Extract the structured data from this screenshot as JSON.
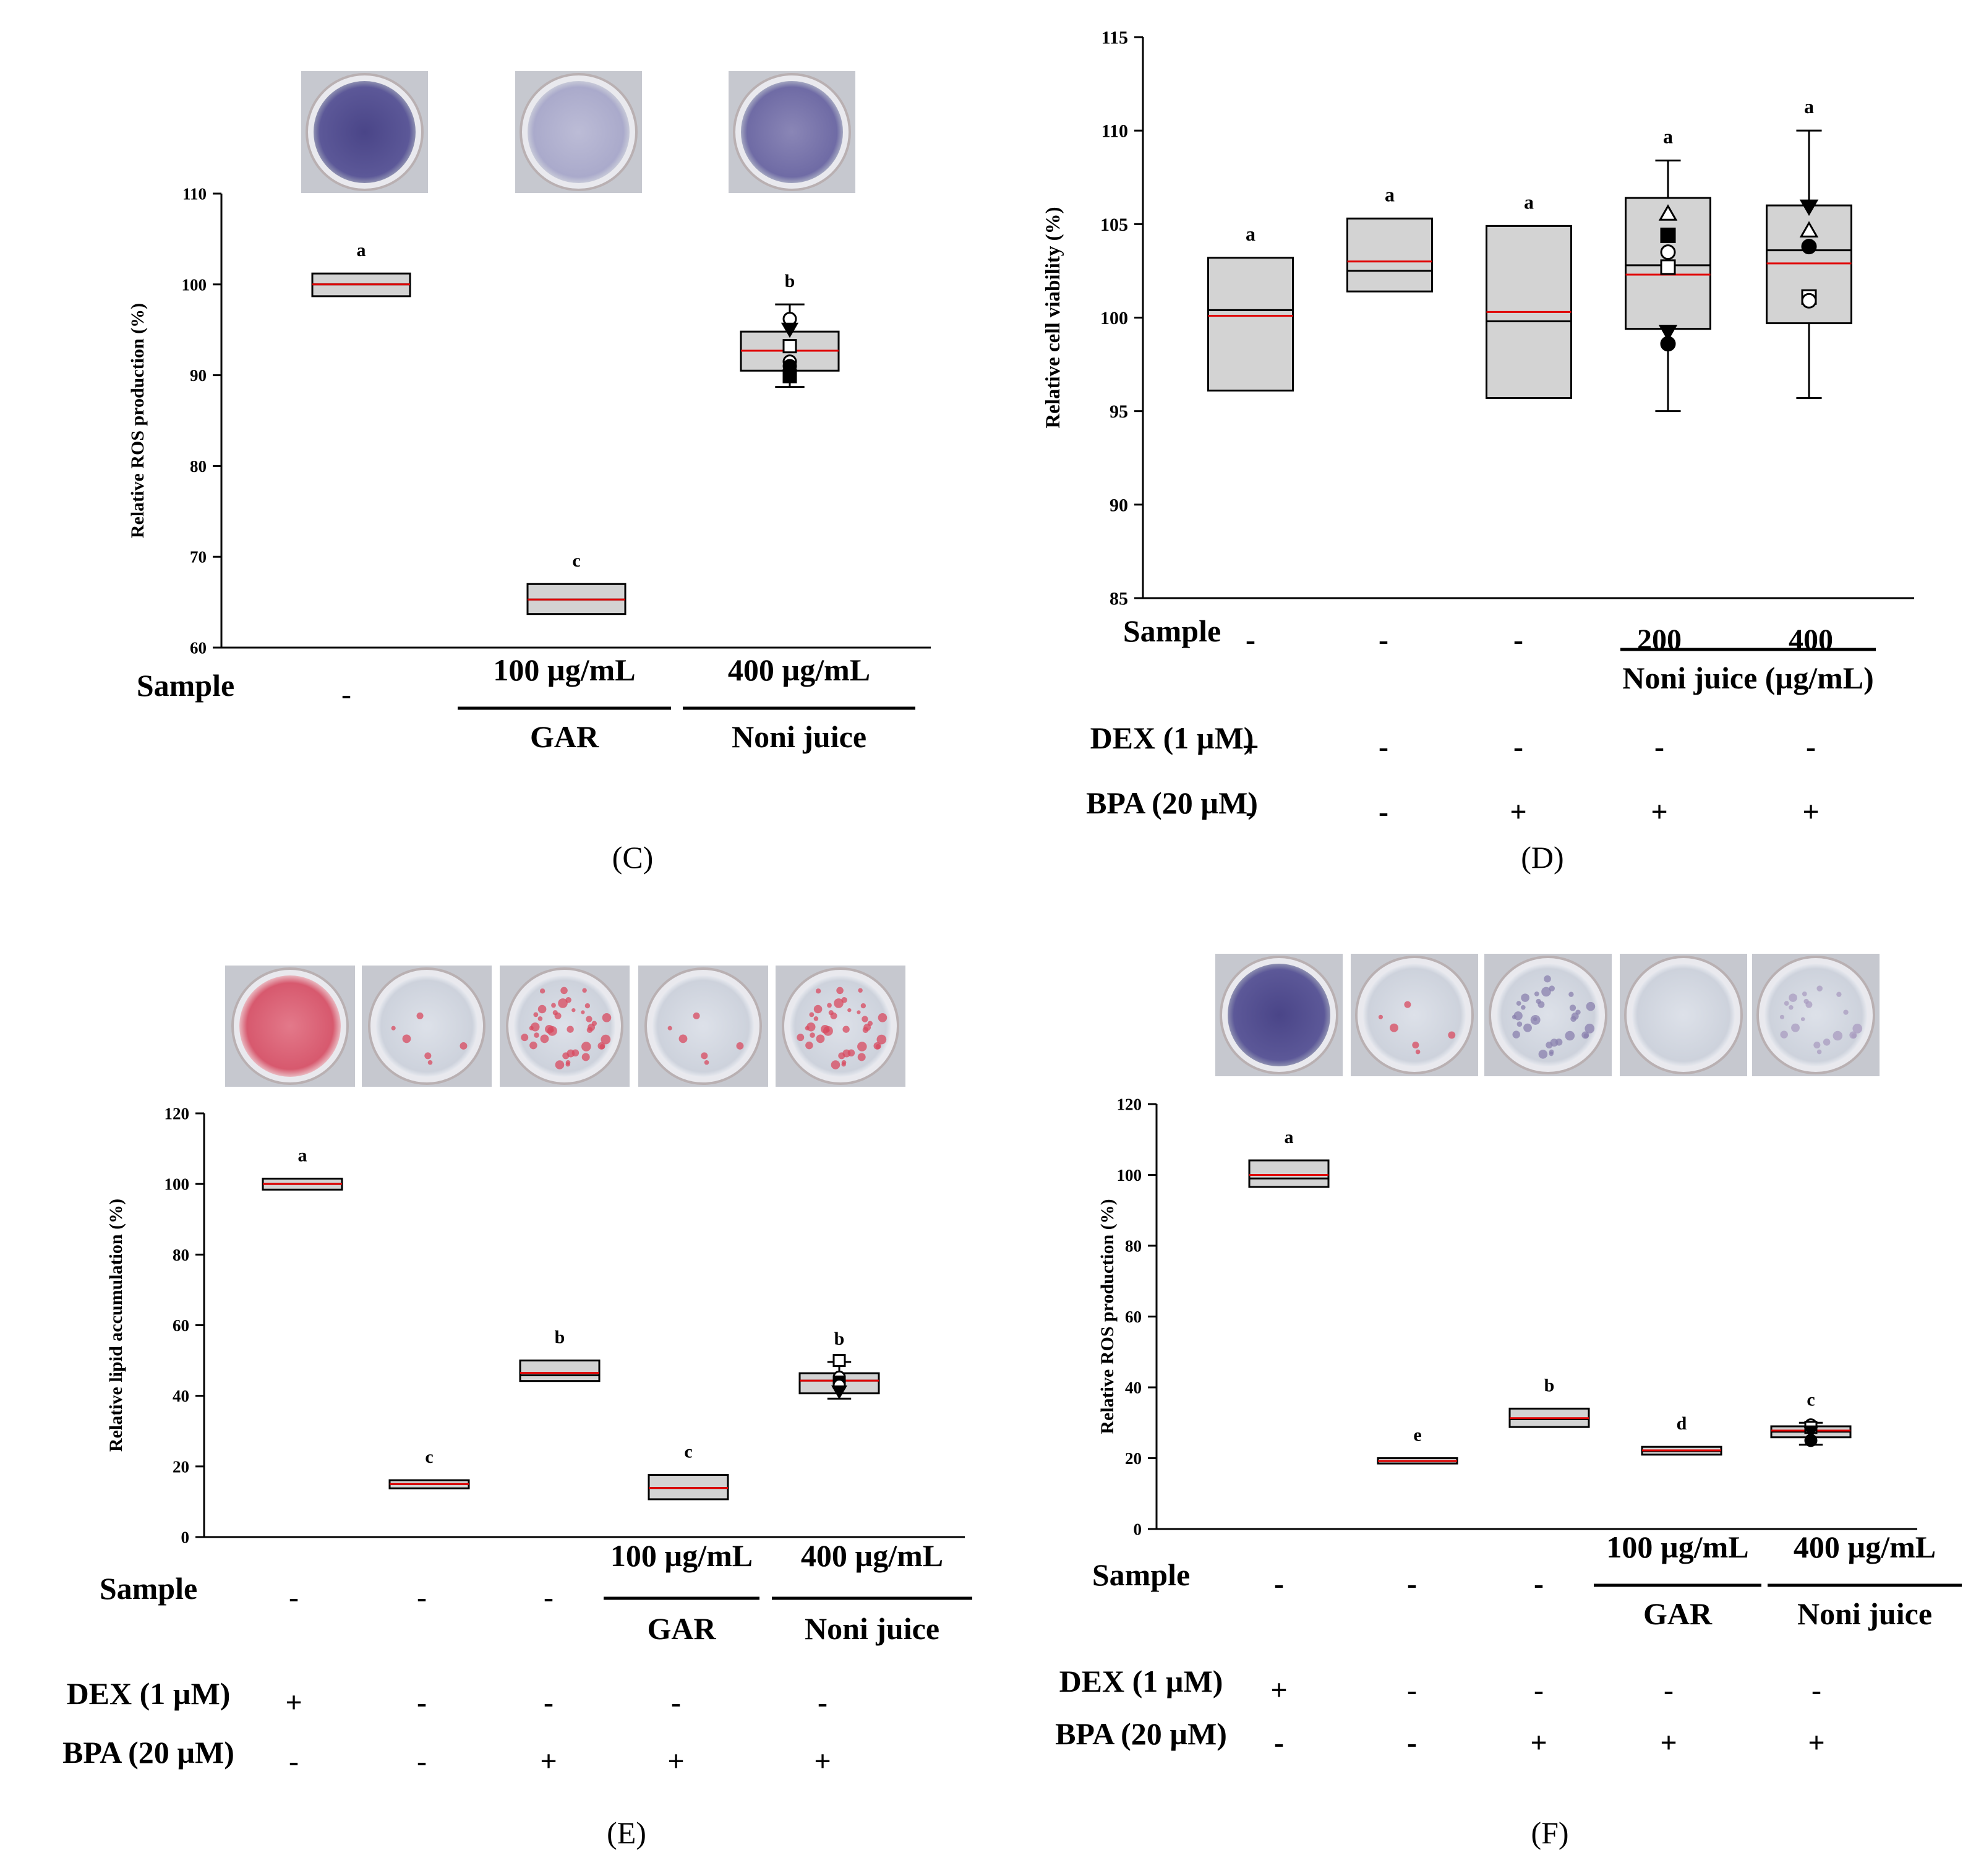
{
  "figure": {
    "panel_labels": [
      "(C)",
      "(D)",
      "(E)",
      "(F)"
    ],
    "colors": {
      "box_fill": "#d3d3d3",
      "box_stroke": "#000000",
      "median_line": "#000000",
      "mean_line": "#e00000",
      "well_purple": "#5a5596",
      "well_pale": "#cfd3dd",
      "well_red": "#d84a5f"
    }
  },
  "chart_data": [
    {
      "id": "C",
      "type": "box",
      "title": "",
      "ylabel": "Relative ROS production (%)",
      "ylim": [
        60,
        110
      ],
      "yticks": [
        "60",
        "70",
        "80",
        "90",
        "100",
        "110"
      ],
      "stain_images": [
        {
          "name": "well-control",
          "stain": "purple-dark"
        },
        {
          "name": "well-gar",
          "stain": "purple-pale"
        },
        {
          "name": "well-noni",
          "stain": "purple-medium"
        }
      ],
      "rows": [
        {
          "label": "Sample",
          "values": [
            "-",
            "",
            ""
          ]
        }
      ],
      "groups": [
        {
          "label": "100  µg/mL",
          "group_name": "GAR",
          "columns": [
            1
          ]
        },
        {
          "label": "400  µg/mL",
          "group_name": "Noni  juice",
          "columns": [
            2
          ]
        }
      ],
      "boxes": [
        {
          "q1": 98.7,
          "q3": 101.2,
          "median": 100.0,
          "mean": 100.0,
          "whisker_low": null,
          "whisker_high": null,
          "letter": "a",
          "points": []
        },
        {
          "q1": 63.7,
          "q3": 67.0,
          "median": 65.3,
          "mean": 65.3,
          "whisker_low": null,
          "whisker_high": null,
          "letter": "c",
          "points": []
        },
        {
          "q1": 90.5,
          "q3": 94.8,
          "median": 92.7,
          "mean": 92.7,
          "whisker_low": 88.7,
          "whisker_high": 97.8,
          "letter": "b",
          "points": [
            {
              "v": 96.2,
              "shape": "circle-open"
            },
            {
              "v": 95.0,
              "shape": "triangle-down"
            },
            {
              "v": 93.2,
              "shape": "square-open"
            },
            {
              "v": 91.5,
              "shape": "circle-open"
            },
            {
              "v": 91.0,
              "shape": "circle"
            },
            {
              "v": 89.9,
              "shape": "square"
            }
          ]
        }
      ]
    },
    {
      "id": "D",
      "type": "box",
      "title": "",
      "ylabel": "Relative cell viability (%)",
      "ylim": [
        85,
        115
      ],
      "yticks": [
        "85",
        "90",
        "95",
        "100",
        "105",
        "110",
        "115"
      ],
      "stain_images": [],
      "rows": [
        {
          "label": "Sample",
          "values": [
            "-",
            "-",
            "-",
            "200",
            "400"
          ]
        },
        {
          "label": "DEX  (1  µM)",
          "values": [
            "+",
            "-",
            "-",
            "-",
            "-"
          ]
        },
        {
          "label": "BPA  (20  µM)",
          "values": [
            "-",
            "-",
            "+",
            "+",
            "+"
          ]
        }
      ],
      "groups": [
        {
          "label": "",
          "group_name": "Noni  juice  (µg/mL)",
          "columns": [
            3,
            4
          ]
        }
      ],
      "boxes": [
        {
          "q1": 96.1,
          "q3": 103.2,
          "median": 100.4,
          "mean": 100.1,
          "whisker_low": null,
          "whisker_high": null,
          "letter": "a",
          "points": []
        },
        {
          "q1": 101.4,
          "q3": 105.3,
          "median": 102.5,
          "mean": 103.0,
          "whisker_low": null,
          "whisker_high": null,
          "letter": "a",
          "points": []
        },
        {
          "q1": 95.7,
          "q3": 104.9,
          "median": 99.8,
          "mean": 100.3,
          "whisker_low": null,
          "whisker_high": null,
          "letter": "a",
          "points": []
        },
        {
          "q1": 99.4,
          "q3": 106.4,
          "median": 102.8,
          "mean": 102.3,
          "whisker_low": 95.0,
          "whisker_high": 108.4,
          "letter": "a",
          "points": [
            {
              "v": 105.6,
              "shape": "triangle-open"
            },
            {
              "v": 104.4,
              "shape": "square"
            },
            {
              "v": 103.5,
              "shape": "circle-open"
            },
            {
              "v": 102.7,
              "shape": "square-open"
            },
            {
              "v": 99.2,
              "shape": "triangle-down"
            },
            {
              "v": 98.6,
              "shape": "circle"
            }
          ]
        },
        {
          "q1": 99.7,
          "q3": 106.0,
          "median": 103.6,
          "mean": 102.9,
          "whisker_low": 95.7,
          "whisker_high": 110.0,
          "letter": "a",
          "points": [
            {
              "v": 105.9,
              "shape": "triangle-down"
            },
            {
              "v": 104.7,
              "shape": "triangle-open"
            },
            {
              "v": 103.8,
              "shape": "circle"
            },
            {
              "v": 101.1,
              "shape": "square-open"
            },
            {
              "v": 100.9,
              "shape": "circle-open"
            }
          ]
        }
      ]
    },
    {
      "id": "E",
      "type": "box",
      "title": "",
      "ylabel": "Relative lipid accumulation (%)",
      "ylim": [
        0,
        120
      ],
      "yticks": [
        "0",
        "20",
        "40",
        "60",
        "80",
        "100",
        "120"
      ],
      "stain_images": [
        {
          "name": "well-dex",
          "stain": "red-dense"
        },
        {
          "name": "well-untreated",
          "stain": "pale"
        },
        {
          "name": "well-bpa",
          "stain": "red-spotted"
        },
        {
          "name": "well-gar",
          "stain": "pale"
        },
        {
          "name": "well-noni",
          "stain": "red-spotted"
        }
      ],
      "rows": [
        {
          "label": "Sample",
          "values": [
            "-",
            "-",
            "-",
            "",
            ""
          ]
        },
        {
          "label": "DEX  (1  µM)",
          "values": [
            "+",
            "-",
            "-",
            "-",
            "-"
          ]
        },
        {
          "label": "BPA  (20  µM)",
          "values": [
            "-",
            "-",
            "+",
            "+",
            "+"
          ]
        }
      ],
      "groups": [
        {
          "label": "100  µg/mL",
          "group_name": "GAR",
          "columns": [
            3
          ]
        },
        {
          "label": "400  µg/mL",
          "group_name": "Noni  juice",
          "columns": [
            4
          ]
        }
      ],
      "boxes": [
        {
          "q1": 98.4,
          "q3": 101.5,
          "median": 100.0,
          "mean": 100.0,
          "whisker_low": null,
          "whisker_high": null,
          "letter": "a",
          "points": []
        },
        {
          "q1": 13.8,
          "q3": 16.1,
          "median": 15.0,
          "mean": 15.0,
          "whisker_low": null,
          "whisker_high": null,
          "letter": "c",
          "points": []
        },
        {
          "q1": 44.2,
          "q3": 50.0,
          "median": 45.8,
          "mean": 46.5,
          "whisker_low": null,
          "whisker_high": null,
          "letter": "b",
          "points": []
        },
        {
          "q1": 10.7,
          "q3": 17.6,
          "median": 13.9,
          "mean": 13.9,
          "whisker_low": null,
          "whisker_high": null,
          "letter": "c",
          "points": []
        },
        {
          "q1": 40.7,
          "q3": 46.4,
          "median": 44.3,
          "mean": 44.3,
          "whisker_low": 39.2,
          "whisker_high": 49.6,
          "letter": "b",
          "points": [
            {
              "v": 50.0,
              "shape": "square-open"
            },
            {
              "v": 45.3,
              "shape": "circle-open"
            },
            {
              "v": 43.9,
              "shape": "square"
            },
            {
              "v": 43.0,
              "shape": "circle-open"
            },
            {
              "v": 41.1,
              "shape": "triangle-down"
            }
          ]
        }
      ]
    },
    {
      "id": "F",
      "type": "box",
      "title": "",
      "ylabel": "Relative ROS production (%)",
      "ylim": [
        0,
        120
      ],
      "yticks": [
        "0",
        "20",
        "40",
        "60",
        "80",
        "100",
        "120"
      ],
      "stain_images": [
        {
          "name": "well-dex",
          "stain": "purple-dark"
        },
        {
          "name": "well-untreated",
          "stain": "pale"
        },
        {
          "name": "well-bpa",
          "stain": "purple-spotted"
        },
        {
          "name": "well-gar",
          "stain": "pale-faint"
        },
        {
          "name": "well-noni",
          "stain": "purple-faint"
        }
      ],
      "rows": [
        {
          "label": "Sample",
          "values": [
            "-",
            "-",
            "-",
            "",
            ""
          ]
        },
        {
          "label": "DEX  (1  µM)",
          "values": [
            "+",
            "-",
            "-",
            "-",
            "-"
          ]
        },
        {
          "label": "BPA  (20  µM)",
          "values": [
            "-",
            "-",
            "+",
            "+",
            "+"
          ]
        }
      ],
      "groups": [
        {
          "label": "100  µg/mL",
          "group_name": "GAR",
          "columns": [
            3
          ]
        },
        {
          "label": "400  µg/mL",
          "group_name": "Noni  juice",
          "columns": [
            4
          ]
        }
      ],
      "boxes": [
        {
          "q1": 96.6,
          "q3": 104.1,
          "median": 99.0,
          "mean": 100.0,
          "whisker_low": null,
          "whisker_high": null,
          "letter": "a",
          "points": []
        },
        {
          "q1": 18.5,
          "q3": 20.0,
          "median": 19.2,
          "mean": 19.2,
          "whisker_low": null,
          "whisker_high": null,
          "letter": "e",
          "points": []
        },
        {
          "q1": 28.8,
          "q3": 34.0,
          "median": 31.0,
          "mean": 31.3,
          "whisker_low": null,
          "whisker_high": null,
          "letter": "b",
          "points": []
        },
        {
          "q1": 21.0,
          "q3": 23.2,
          "median": 22.0,
          "mean": 22.2,
          "whisker_low": null,
          "whisker_high": null,
          "letter": "d",
          "points": []
        },
        {
          "q1": 25.9,
          "q3": 29.0,
          "median": 27.5,
          "mean": 27.8,
          "whisker_low": 23.8,
          "whisker_high": 30.0,
          "letter": "c",
          "points": [
            {
              "v": 29.4,
              "shape": "circle-open"
            },
            {
              "v": 28.7,
              "shape": "square-open"
            },
            {
              "v": 27.4,
              "shape": "triangle-down"
            },
            {
              "v": 25.0,
              "shape": "circle"
            }
          ]
        }
      ]
    }
  ]
}
